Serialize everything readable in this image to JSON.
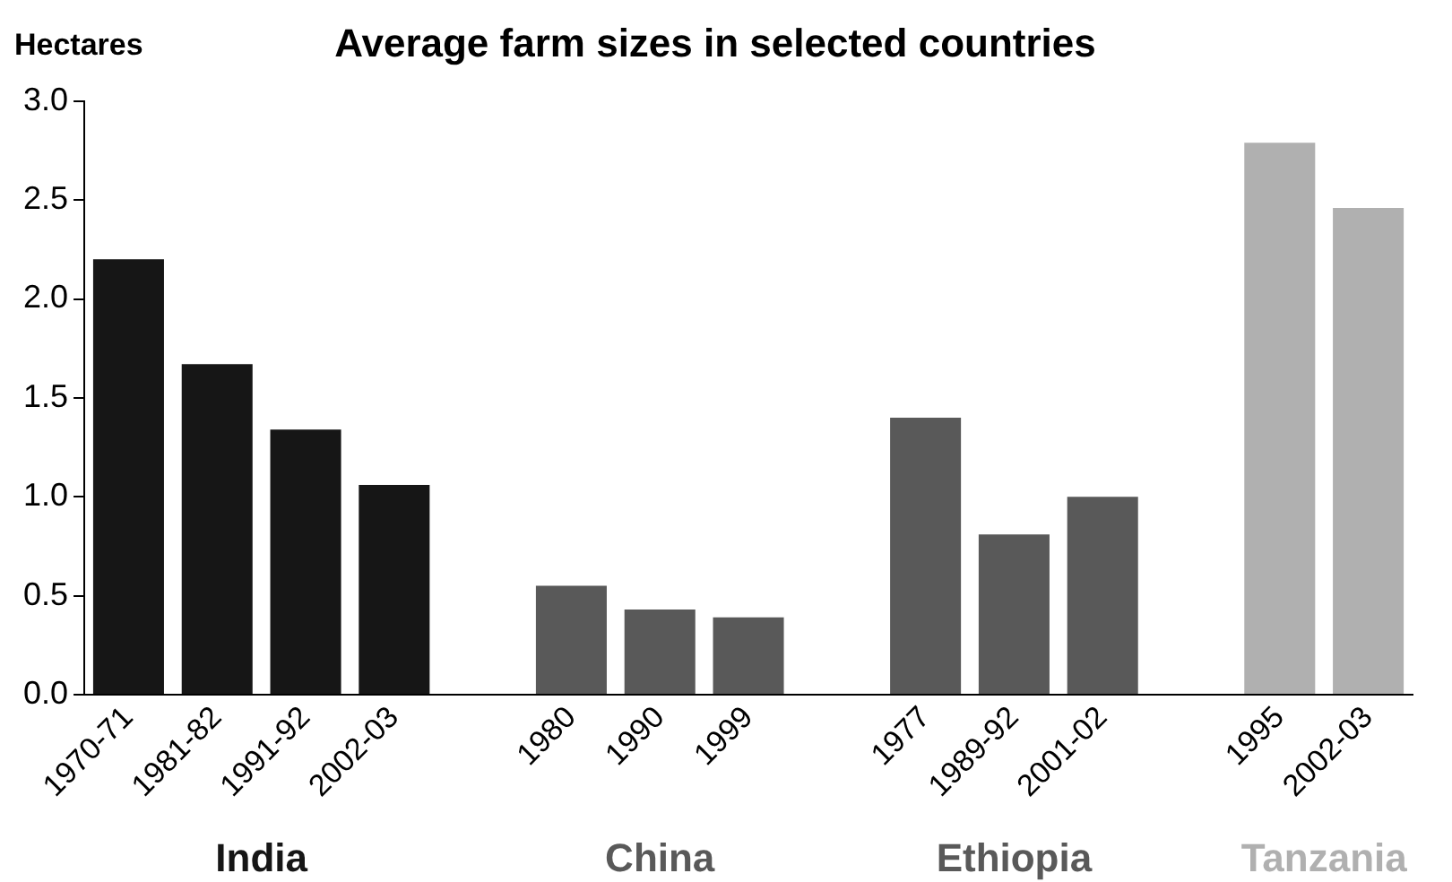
{
  "chart_data": {
    "type": "bar",
    "title": "Average farm sizes in selected countries",
    "ylabel": "Hectares",
    "categories": [
      "1970-71",
      "1981-82",
      "1991-92",
      "2002-03",
      null,
      "1980",
      "1990",
      "1999",
      null,
      "1977",
      "1989-92",
      "2001-02",
      null,
      "1995",
      "2002-03"
    ],
    "values": [
      2.2,
      1.67,
      1.34,
      1.06,
      null,
      0.55,
      0.43,
      0.39,
      null,
      1.4,
      0.81,
      1.0,
      null,
      2.79,
      2.46
    ],
    "colors": [
      "#161616",
      "#161616",
      "#161616",
      "#161616",
      "#161616",
      "#595959",
      "#595959",
      "#595959",
      "#595959",
      "#595959",
      "#595959",
      "#595959",
      "#595959",
      "#b0b0b0",
      "#b0b0b0"
    ],
    "ylim": [
      0,
      3
    ],
    "yticks": [
      {
        "value": 0,
        "label": "0.0"
      },
      {
        "value": 0.5,
        "label": "0.5"
      },
      {
        "value": 1,
        "label": "1.0"
      },
      {
        "value": 1.5,
        "label": "1.5"
      },
      {
        "value": 2,
        "label": "2.0"
      },
      {
        "value": 2.5,
        "label": "2.5"
      },
      {
        "value": 3,
        "label": "3.0"
      }
    ],
    "annotations": [
      "India",
      "China",
      "Ethiopia",
      "Tanzania"
    ],
    "grid": false,
    "legend": false
  }
}
